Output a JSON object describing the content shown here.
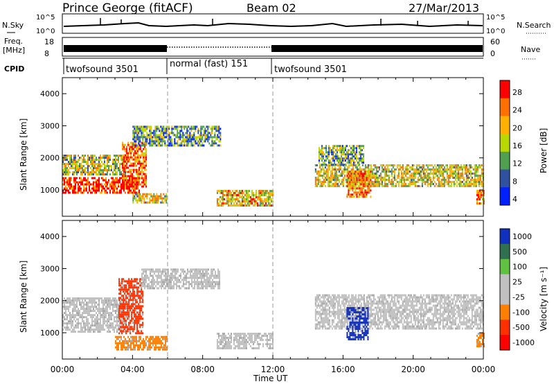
{
  "header": {
    "station": "Prince George (fitACF)",
    "beam": "Beam 02",
    "date": "27/Mar/2013"
  },
  "top_panels": {
    "nsky_label": "N.Sky",
    "nsky_ticks": [
      "10^5",
      "10^0"
    ],
    "nsearch_label": "N.Search",
    "nsearch_ticks": [
      "10^5",
      "10^0"
    ],
    "freq_label": "Freq.",
    "freq_unit": "[MHz]",
    "freq_ticks": [
      "18",
      "8"
    ],
    "nave_label": "Nave",
    "nave_ticks": [
      "60",
      "0"
    ],
    "cpid_label": "CPID",
    "cpid_segments": [
      {
        "label": "twofsound 3501",
        "start_hour": 0,
        "end_hour": 6
      },
      {
        "label": "normal (fast) 151",
        "start_hour": 6,
        "end_hour": 12
      },
      {
        "label": "twofsound 3501",
        "start_hour": 12,
        "end_hour": 24
      }
    ]
  },
  "chart_data": [
    {
      "type": "heatmap",
      "panel": "power",
      "xlabel": "Time UT",
      "ylabel": "Slant Range [km]",
      "x_ticks": [
        "00:00",
        "04:00",
        "08:00",
        "12:00",
        "16:00",
        "20:00",
        "00:00"
      ],
      "x_range_hours": [
        0,
        24
      ],
      "y_range": [
        180,
        4500
      ],
      "y_ticks": [
        1000,
        2000,
        3000,
        4000
      ],
      "colorbar_label": "Power [dB]",
      "colorbar_ticks": [
        "28",
        "24",
        "20",
        "16",
        "12",
        "8",
        "4"
      ],
      "colorbar_colors": [
        "#ff0000",
        "#ff7000",
        "#ffb000",
        "#b8d800",
        "#50a050",
        "#3050a0",
        "#0020ff"
      ],
      "mode_change_hours": [
        6,
        12
      ],
      "echo_regions": [
        {
          "t0": 0.0,
          "t1": 4.4,
          "r0": 900,
          "r1": 1400,
          "intensity": 0.9
        },
        {
          "t0": 0.0,
          "t1": 3.6,
          "r0": 1500,
          "r1": 2100,
          "intensity": 0.5
        },
        {
          "t0": 3.4,
          "t1": 4.8,
          "r0": 1100,
          "r1": 2500,
          "intensity": 0.8
        },
        {
          "t0": 4.0,
          "t1": 5.9,
          "r0": 600,
          "r1": 900,
          "intensity": 0.55
        },
        {
          "t0": 4.0,
          "t1": 9.0,
          "r0": 2400,
          "r1": 3000,
          "intensity": 0.35
        },
        {
          "t0": 8.8,
          "t1": 12.0,
          "r0": 500,
          "r1": 1000,
          "intensity": 0.6
        },
        {
          "t0": 14.4,
          "t1": 24.0,
          "r0": 1100,
          "r1": 1800,
          "intensity": 0.55
        },
        {
          "t0": 14.6,
          "t1": 17.2,
          "r0": 1800,
          "r1": 2400,
          "intensity": 0.4
        },
        {
          "t0": 16.2,
          "t1": 17.6,
          "r0": 800,
          "r1": 1600,
          "intensity": 0.75
        },
        {
          "t0": 23.6,
          "t1": 24.0,
          "r0": 600,
          "r1": 1000,
          "intensity": 0.7
        }
      ]
    },
    {
      "type": "heatmap",
      "panel": "velocity",
      "xlabel": "Time UT",
      "ylabel": "Slant Range [km]",
      "x_ticks": [
        "00:00",
        "04:00",
        "08:00",
        "12:00",
        "16:00",
        "20:00",
        "00:00"
      ],
      "x_range_hours": [
        0,
        24
      ],
      "y_range": [
        180,
        4500
      ],
      "y_ticks": [
        1000,
        2000,
        3000,
        4000
      ],
      "colorbar_label": "Velocity [m s⁻¹]",
      "colorbar_ticks": [
        "1000",
        "500",
        "100",
        "25",
        "-25",
        "-100",
        "-500",
        "-1000"
      ],
      "colorbar_colors": [
        "#1030c0",
        "#307050",
        "#60c040",
        "#c0c0c0",
        "#c0c0c0",
        "#ff8000",
        "#ff3000",
        "#ff0000"
      ],
      "mode_change_hours": [
        6,
        12
      ],
      "echo_regions": [
        {
          "t0": 0.0,
          "t1": 3.6,
          "r0": 1000,
          "r1": 2100,
          "color": "#c0c0c0"
        },
        {
          "t0": 3.2,
          "t1": 4.6,
          "r0": 1000,
          "r1": 2700,
          "color": "#ff3000"
        },
        {
          "t0": 3.0,
          "t1": 6.0,
          "r0": 500,
          "r1": 900,
          "color": "#ff8000"
        },
        {
          "t0": 4.5,
          "t1": 9.0,
          "r0": 2400,
          "r1": 3000,
          "color": "#c0c0c0"
        },
        {
          "t0": 8.8,
          "t1": 12.0,
          "r0": 500,
          "r1": 1000,
          "color": "#c0c0c0"
        },
        {
          "t0": 14.4,
          "t1": 24.0,
          "r0": 1100,
          "r1": 2200,
          "color": "#c0c0c0"
        },
        {
          "t0": 16.2,
          "t1": 17.4,
          "r0": 800,
          "r1": 1800,
          "color": "#1030c0"
        },
        {
          "t0": 23.6,
          "t1": 24.0,
          "r0": 600,
          "r1": 1000,
          "color": "#ff8000"
        }
      ]
    }
  ]
}
